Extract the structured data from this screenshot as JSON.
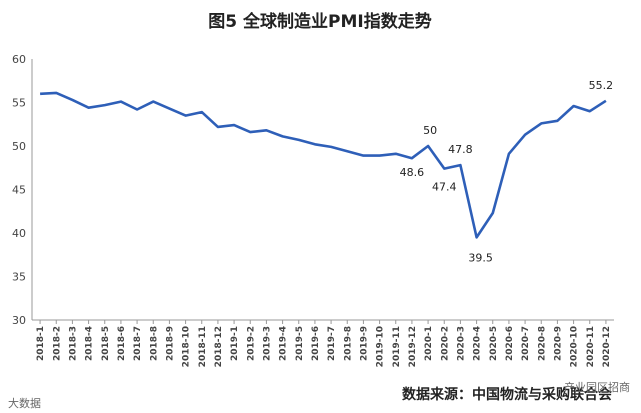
{
  "chart_data": {
    "type": "line",
    "title": "图5  全球制造业PMI指数走势",
    "xlabel": "",
    "ylabel": "",
    "ylim": [
      30,
      60
    ],
    "yticks": [
      30,
      35,
      40,
      45,
      50,
      55,
      60
    ],
    "grid": false,
    "legend": "none",
    "line_color": "#2e5fb8",
    "categories": [
      "2018-1",
      "2018-2",
      "2018-3",
      "2018-4",
      "2018-5",
      "2018-6",
      "2018-7",
      "2018-8",
      "2018-9",
      "2018-10",
      "2018-11",
      "2018-12",
      "2019-1",
      "2019-2",
      "2019-3",
      "2019-4",
      "2019-5",
      "2019-6",
      "2019-7",
      "2019-8",
      "2019-9",
      "2019-10",
      "2019-11",
      "2019-12",
      "2020-1",
      "2020-2",
      "2020-3",
      "2020-4",
      "2020-5",
      "2020-6",
      "2020-7",
      "2020-8",
      "2020-9",
      "2020-10",
      "2020-11",
      "2020-12"
    ],
    "values": [
      56.0,
      56.1,
      55.3,
      54.4,
      54.7,
      55.1,
      54.2,
      55.1,
      54.3,
      53.5,
      53.9,
      52.2,
      52.4,
      51.6,
      51.8,
      51.1,
      50.7,
      50.2,
      49.9,
      49.4,
      48.9,
      48.9,
      49.1,
      48.6,
      50,
      47.4,
      47.8,
      39.5,
      42.3,
      49.1,
      51.3,
      52.6,
      52.9,
      54.6,
      54.0,
      55.2
    ],
    "annotations": [
      {
        "index": 23,
        "label": "48.6"
      },
      {
        "index": 24,
        "label": "50"
      },
      {
        "index": 25,
        "label": "47.4"
      },
      {
        "index": 26,
        "label": "47.8"
      },
      {
        "index": 27,
        "label": "39.5"
      },
      {
        "index": 35,
        "label": "55.2"
      }
    ]
  },
  "source": "数据来源：中国物流与采购联合会",
  "watermark_left": "大数据",
  "watermark_right": "产业园区招商"
}
